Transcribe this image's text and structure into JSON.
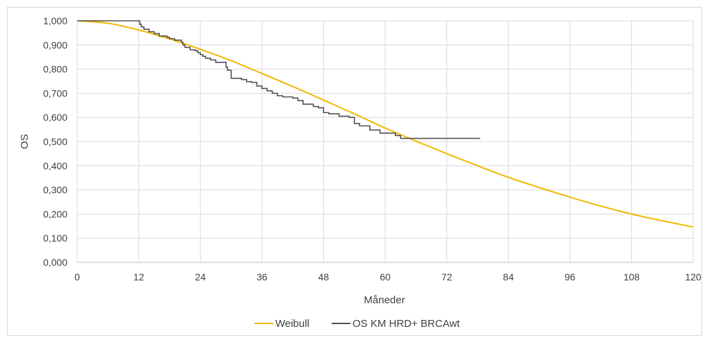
{
  "chart_data": {
    "type": "line",
    "title": "",
    "xlabel": "Måneder",
    "ylabel": "OS",
    "xlim": [
      0,
      120
    ],
    "ylim": [
      0,
      1
    ],
    "x_ticks": [
      0,
      12,
      24,
      36,
      48,
      60,
      72,
      84,
      96,
      108,
      120
    ],
    "x_tick_labels": [
      "0",
      "12",
      "24",
      "36",
      "48",
      "60",
      "72",
      "84",
      "96",
      "108",
      "120"
    ],
    "y_ticks": [
      0,
      0.1,
      0.2,
      0.3,
      0.4,
      0.5,
      0.6,
      0.7,
      0.8,
      0.9,
      1.0
    ],
    "y_tick_labels": [
      "0,000",
      "0,100",
      "0,200",
      "0,300",
      "0,400",
      "0,500",
      "0,600",
      "0,700",
      "0,800",
      "0,900",
      "1,000"
    ],
    "grid": "vertical and horizontal",
    "legend_position": "bottom",
    "series": [
      {
        "name": "Weibull",
        "color": "#F2B700",
        "style": "line",
        "x": [
          0,
          6,
          12,
          18,
          24,
          30,
          36,
          42,
          48,
          54,
          60,
          66,
          72,
          78,
          84,
          90,
          96,
          102,
          108,
          114,
          120
        ],
        "y": [
          1.0,
          0.99,
          0.962,
          0.925,
          0.882,
          0.835,
          0.782,
          0.728,
          0.672,
          0.615,
          0.556,
          0.502,
          0.45,
          0.4,
          0.352,
          0.31,
          0.27,
          0.233,
          0.2,
          0.172,
          0.146
        ]
      },
      {
        "name": "OS KM HRD+ BRCAwt",
        "color": "#505050",
        "style": "step",
        "x": [
          0,
          12.2,
          12.5,
          13,
          14,
          15,
          16,
          17.5,
          18,
          19,
          20.3,
          20.6,
          21,
          22,
          23,
          23.5,
          24,
          24.5,
          25,
          26,
          27,
          29,
          29.3,
          30,
          32,
          33,
          34,
          35,
          36,
          37,
          38,
          39,
          40,
          42,
          43,
          44,
          46,
          47,
          48,
          49,
          51,
          53,
          54,
          55,
          57,
          59,
          62,
          63,
          78.5
        ],
        "y": [
          1.0,
          0.985,
          0.975,
          0.965,
          0.955,
          0.947,
          0.937,
          0.932,
          0.926,
          0.92,
          0.912,
          0.9,
          0.89,
          0.88,
          0.876,
          0.868,
          0.86,
          0.853,
          0.845,
          0.838,
          0.828,
          0.808,
          0.795,
          0.762,
          0.757,
          0.748,
          0.745,
          0.73,
          0.72,
          0.71,
          0.7,
          0.69,
          0.685,
          0.68,
          0.67,
          0.655,
          0.645,
          0.64,
          0.62,
          0.615,
          0.605,
          0.6,
          0.575,
          0.565,
          0.548,
          0.535,
          0.525,
          0.513,
          0.513
        ]
      }
    ]
  }
}
